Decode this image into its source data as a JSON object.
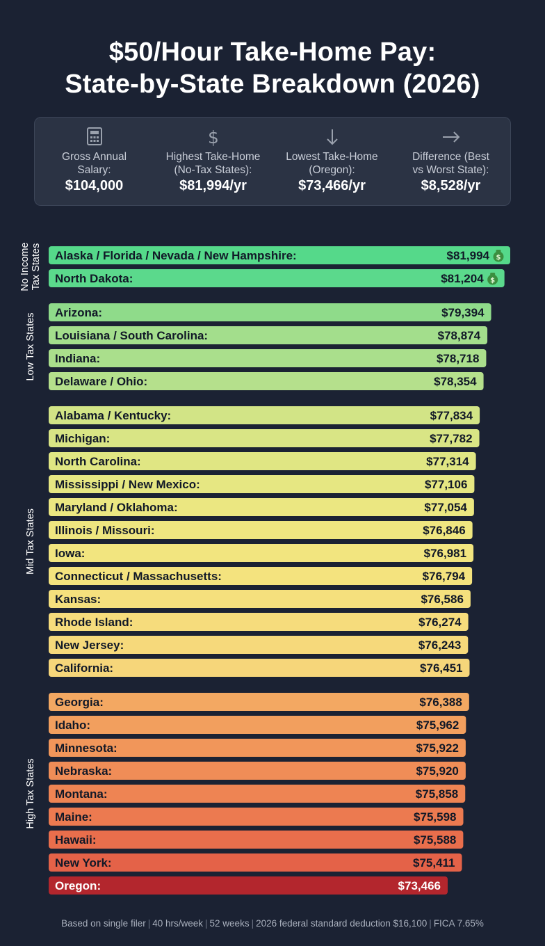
{
  "title_line1": "$50/Hour Take-Home Pay:",
  "title_line2": "State-by-State Breakdown (2026)",
  "summary": [
    {
      "icon": "calculator-icon",
      "label_lines": [
        "Gross Annual",
        "Salary:"
      ],
      "value": "$104,000"
    },
    {
      "icon": "dollar-sign-icon",
      "label_lines": [
        "Highest Take-Home",
        "(No-Tax States):"
      ],
      "value": "$81,994/yr"
    },
    {
      "icon": "arrow-down-icon",
      "label_lines": [
        "Lowest Take-Home",
        "(Oregon):"
      ],
      "value": "$73,466/yr"
    },
    {
      "icon": "arrow-right-icon",
      "label_lines": [
        "Difference (Best",
        "vs Worst State):"
      ],
      "value": "$8,528/yr"
    }
  ],
  "chart_data": {
    "type": "bar",
    "orientation": "horizontal",
    "groups": [
      {
        "name_lines": [
          "No Income",
          "Tax States"
        ],
        "bars": [
          {
            "label": "Alaska / Florida / Nevada / New Hampshire:",
            "value": 81994,
            "value_label": "$81,994",
            "icon": "money-bag-icon",
            "color": "#55d98a"
          },
          {
            "label": "North Dakota:",
            "value": 81204,
            "value_label": "$81,204",
            "icon": "money-bag-icon",
            "color": "#5bd98c"
          }
        ]
      },
      {
        "name_lines": [
          "Low Tax States"
        ],
        "bars": [
          {
            "label": "Arizona:",
            "value": 79394,
            "value_label": "$79,394",
            "color": "#8fdb8a"
          },
          {
            "label": "Louisiana / South Carolina:",
            "value": 78874,
            "value_label": "$78,874",
            "color": "#a3de8c"
          },
          {
            "label": "Indiana:",
            "value": 78718,
            "value_label": "$78,718",
            "color": "#aadf8c"
          },
          {
            "label": "Delaware / Ohio:",
            "value": 78354,
            "value_label": "$78,354",
            "color": "#b5e08c"
          }
        ]
      },
      {
        "name_lines": [
          "Mid Tax States"
        ],
        "bars": [
          {
            "label": "Alabama / Kentucky:",
            "value": 77834,
            "value_label": "$77,834",
            "color": "#d2e486"
          },
          {
            "label": "Michigan:",
            "value": 77782,
            "value_label": "$77,782",
            "color": "#d9e585"
          },
          {
            "label": "North Carolina:",
            "value": 77314,
            "value_label": "$77,314",
            "color": "#e0e683"
          },
          {
            "label": "Mississippi / New Mexico:",
            "value": 77106,
            "value_label": "$77,106",
            "color": "#e6e782"
          },
          {
            "label": "Maryland / Oklahoma:",
            "value": 77054,
            "value_label": "$77,054",
            "color": "#ebe781"
          },
          {
            "label": "Illinois / Missouri:",
            "value": 76846,
            "value_label": "$76,846",
            "color": "#efe680"
          },
          {
            "label": "Iowa:",
            "value": 76981,
            "value_label": "$76,981",
            "color": "#f2e57f"
          },
          {
            "label": "Connecticut / Massachusetts:",
            "value": 76794,
            "value_label": "$76,794",
            "color": "#f4e37e"
          },
          {
            "label": "Kansas:",
            "value": 76586,
            "value_label": "$76,586",
            "color": "#f5e07d"
          },
          {
            "label": "Rhode Island:",
            "value": 76274,
            "value_label": "$76,274",
            "color": "#f6dc7c"
          },
          {
            "label": "New Jersey:",
            "value": 76243,
            "value_label": "$76,243",
            "color": "#f6d97b"
          },
          {
            "label": "California:",
            "value": 76451,
            "value_label": "$76,451",
            "color": "#f6d67a"
          }
        ]
      },
      {
        "name_lines": [
          "High Tax States"
        ],
        "bars": [
          {
            "label": "Georgia:",
            "value": 76388,
            "value_label": "$76,388",
            "color": "#f3a862"
          },
          {
            "label": "Idaho:",
            "value": 75962,
            "value_label": "$75,962",
            "color": "#f29f5e"
          },
          {
            "label": "Minnesota:",
            "value": 75922,
            "value_label": "$75,922",
            "color": "#f1965a"
          },
          {
            "label": "Nebraska:",
            "value": 75920,
            "value_label": "$75,920",
            "color": "#f08d57"
          },
          {
            "label": "Montana:",
            "value": 75858,
            "value_label": "$75,858",
            "color": "#ee8453"
          },
          {
            "label": "Maine:",
            "value": 75598,
            "value_label": "$75,598",
            "color": "#ec7a50"
          },
          {
            "label": "Hawaii:",
            "value": 75588,
            "value_label": "$75,588",
            "color": "#e96e4c"
          },
          {
            "label": "New York:",
            "value": 75411,
            "value_label": "$75,411",
            "color": "#e46248"
          },
          {
            "label": "Oregon:",
            "value": 73466,
            "value_label": "$73,466",
            "color": "#b3262d",
            "label_color": "#ffffff"
          }
        ]
      }
    ]
  },
  "footnote": [
    "Based on single filer",
    "40 hrs/week",
    "52 weeks",
    "2026 federal standard deduction $16,100",
    "FICA 7.65%"
  ]
}
